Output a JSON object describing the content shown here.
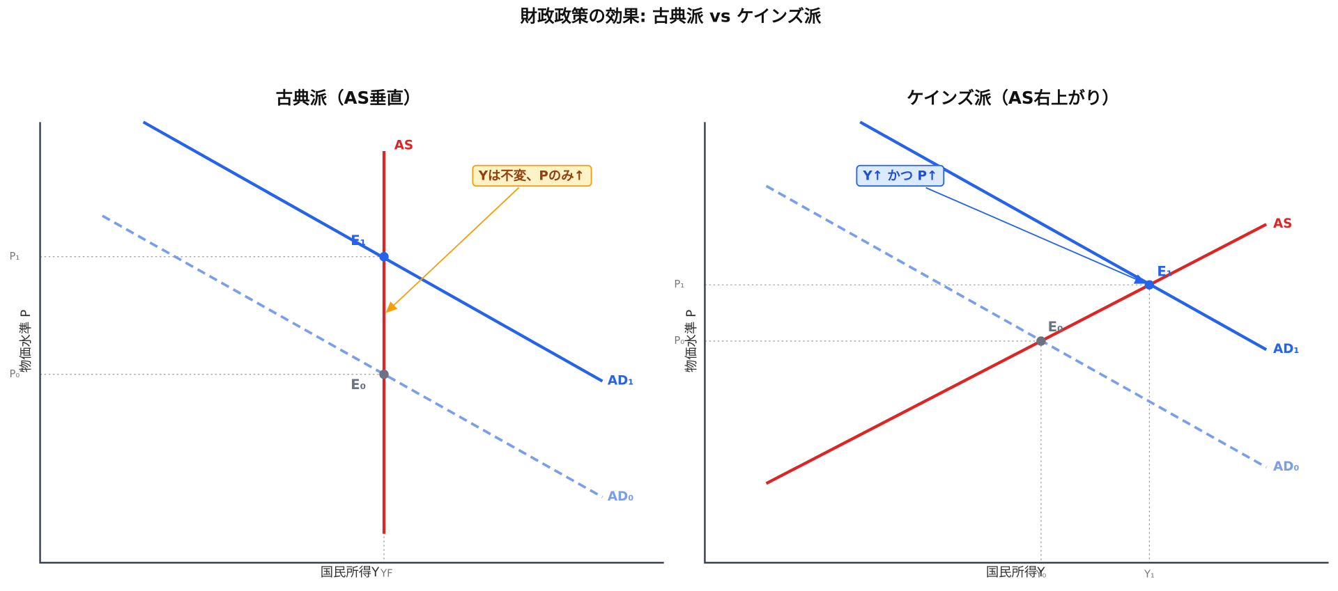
{
  "title": "財政政策の効果: 古典派 vs ケインズ派",
  "panels": [
    {
      "subtitle": "古典派（AS垂直）",
      "x_label": "国民所得Y",
      "y_label": "物価水準 P",
      "curves": {
        "as": "AS",
        "ad1": "AD₁",
        "ad0": "AD₀"
      },
      "points": {
        "e1": "E₁",
        "e0": "E₀"
      },
      "ticks": {
        "p1": "P₁",
        "p0": "P₀",
        "yf": "YF"
      },
      "annotation": "Yは不変、Pのみ↑"
    },
    {
      "subtitle": "ケインズ派（AS右上がり）",
      "x_label": "国民所得Y",
      "y_label": "物価水準 P",
      "curves": {
        "as": "AS",
        "ad1": "AD₁",
        "ad0": "AD₀"
      },
      "points": {
        "e1": "E₁",
        "e0": "E₀"
      },
      "ticks": {
        "p1": "P₁",
        "p0": "P₀",
        "y0": "Y₀",
        "y1": "Y₁"
      },
      "annotation": "Y↑ かつ P↑"
    }
  ]
}
